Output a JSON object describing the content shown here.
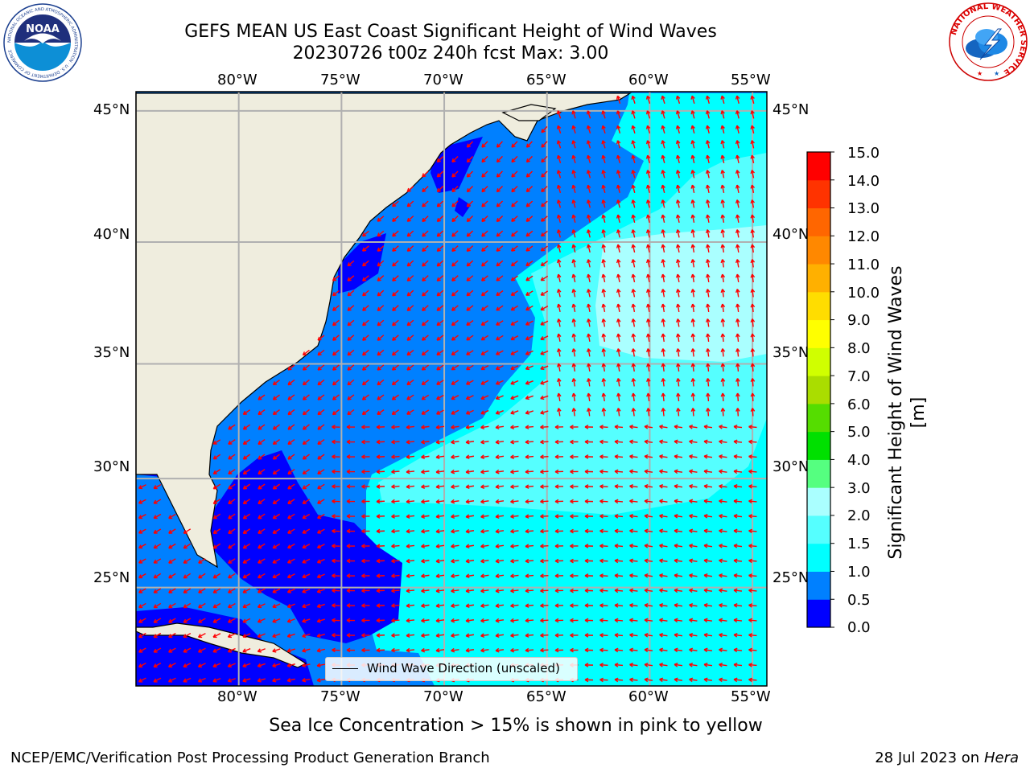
{
  "title": {
    "line1": "GEFS MEAN US East Coast Significant Height of Wind Waves",
    "line2": "20230726 t00z 240h fcst   Max: 3.00"
  },
  "map": {
    "lon_ticks": [
      "80°W",
      "75°W",
      "70°W",
      "65°W",
      "60°W",
      "55°W"
    ],
    "lat_ticks": [
      "45°N",
      "40°N",
      "35°N",
      "30°N",
      "25°N"
    ],
    "lon_values": [
      -80,
      -75,
      -70,
      -65,
      -60,
      -55
    ],
    "lat_values": [
      45,
      40,
      35,
      30,
      25
    ],
    "lon_range": [
      -85,
      -54.3
    ],
    "lat_range": [
      20.3,
      45.7
    ],
    "legend_label": "Wind Wave Direction (unscaled)",
    "land_color": "#efedde",
    "vector_color": "#ff0000"
  },
  "colorbar": {
    "label": "Significant Height of Wind Waves [m]",
    "ticks": [
      "0.0",
      "0.5",
      "1.0",
      "1.5",
      "2.0",
      "3.0",
      "4.0",
      "5.0",
      "6.0",
      "7.0",
      "8.0",
      "9.0",
      "10.0",
      "11.0",
      "12.0",
      "13.0",
      "14.0",
      "15.0"
    ],
    "colors": [
      "#0000ff",
      "#0080ff",
      "#00ffff",
      "#55ffff",
      "#aaffff",
      "#55ff80",
      "#00e000",
      "#55dd00",
      "#aadd00",
      "#d0ff00",
      "#ffff00",
      "#ffdd00",
      "#ffb000",
      "#ff8800",
      "#ff6600",
      "#ff3300",
      "#ff0000"
    ]
  },
  "note": "Sea Ice Concentration > 15% is shown in pink to yellow",
  "footer": {
    "left": "NCEP/EMC/Verification Post Processing Product Generation Branch",
    "date": "28 Jul 2023 on",
    "host": "Hera"
  },
  "logos": {
    "noaa": "NOAA",
    "noaa_ring": "NATIONAL OCEANIC AND ATMOSPHERIC ADMINISTRATION · U.S. DEPARTMENT OF COMMERCE",
    "nws_ring": "NATIONAL WEATHER SERVICE"
  }
}
